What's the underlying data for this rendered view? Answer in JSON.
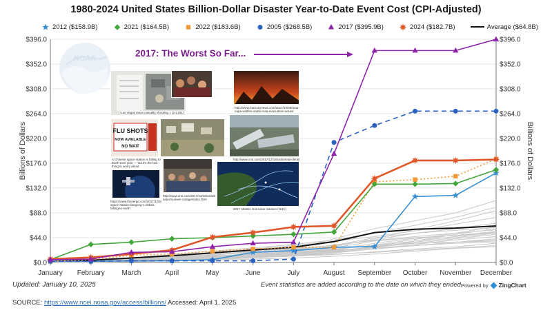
{
  "chart_data": {
    "type": "line",
    "title": "1980-2024 United States Billion-Dollar Disaster Year-to-Date Event Cost (CPI-Adjusted)",
    "ylabel_left": "Billions of Dollars",
    "ylabel_right": "Billions of Dollars",
    "categories": [
      "January",
      "February",
      "March",
      "April",
      "May",
      "June",
      "July",
      "August",
      "September",
      "October",
      "November",
      "December"
    ],
    "ylim": [
      0,
      396
    ],
    "yticks": [
      "$0.0",
      "$44.0",
      "$88.0",
      "$132.0",
      "$176.0",
      "$220.0",
      "$264.0",
      "$308.0",
      "$352.0",
      "$396.0"
    ],
    "series": [
      {
        "name": "2012 ($158.9B)",
        "color": "#3a8fd0",
        "marker": "star",
        "dash": "solid",
        "values": [
          2,
          2,
          3,
          3,
          5,
          18,
          21,
          27,
          28,
          117,
          119,
          158.9
        ]
      },
      {
        "name": "2021 ($164.5B)",
        "color": "#43a63a",
        "marker": "diamond",
        "dash": "solid",
        "values": [
          5,
          32,
          36,
          42,
          44,
          47,
          50,
          54,
          139,
          139,
          140,
          164.5
        ]
      },
      {
        "name": "2022 ($183.6B)",
        "color": "#f29a38",
        "marker": "square",
        "dash": "dotted",
        "values": [
          2,
          5,
          13,
          15,
          20,
          24,
          27,
          27,
          143,
          147,
          153,
          183.6
        ]
      },
      {
        "name": "2005 ($268.5B)",
        "color": "#2b62c0",
        "marker": "circle",
        "dash": "dashed",
        "values": [
          2,
          2,
          3,
          3,
          3,
          3,
          6,
          213,
          243,
          268.5,
          268.5,
          268.5
        ]
      },
      {
        "name": "2017 ($395.9B)",
        "color": "#8e24aa",
        "marker": "triangle",
        "dash": "solid",
        "values": [
          5,
          6,
          18,
          19,
          28,
          34,
          36,
          193,
          376,
          376,
          376,
          395.9
        ]
      },
      {
        "name": "2024 ($182.7B)",
        "color": "#e0582a",
        "marker": "burst",
        "dash": "solid",
        "values": [
          6,
          9,
          15,
          22,
          45,
          53,
          63,
          65,
          149,
          181,
          181,
          182.7
        ]
      },
      {
        "name": "Average ($64.8B)",
        "color": "#111111",
        "marker": "none",
        "dash": "solid",
        "values": [
          2,
          4,
          8,
          12,
          17,
          22,
          27,
          37,
          53,
          59,
          61,
          64.8
        ]
      }
    ],
    "background_series_color": "#c9c9c9",
    "background_series": [
      [
        1,
        3,
        5,
        8,
        12,
        14,
        16,
        22,
        34,
        43,
        48,
        55
      ],
      [
        0,
        1,
        2,
        4,
        6,
        9,
        14,
        19,
        24,
        30,
        36,
        40
      ],
      [
        1,
        2,
        6,
        10,
        14,
        18,
        20,
        26,
        30,
        34,
        36,
        38
      ],
      [
        0,
        1,
        3,
        5,
        9,
        13,
        16,
        20,
        26,
        38,
        50,
        60
      ],
      [
        2,
        4,
        7,
        11,
        14,
        20,
        25,
        30,
        44,
        52,
        57,
        62
      ],
      [
        0,
        2,
        4,
        6,
        8,
        10,
        12,
        15,
        18,
        22,
        26,
        30
      ],
      [
        1,
        2,
        3,
        6,
        10,
        15,
        22,
        30,
        40,
        52,
        60,
        70
      ],
      [
        0,
        0,
        1,
        3,
        6,
        9,
        14,
        26,
        38,
        44,
        48,
        52
      ],
      [
        1,
        3,
        7,
        12,
        18,
        24,
        30,
        38,
        46,
        56,
        68,
        80
      ],
      [
        0,
        1,
        2,
        4,
        8,
        14,
        20,
        28,
        42,
        58,
        74,
        92
      ],
      [
        1,
        2,
        4,
        7,
        11,
        16,
        23,
        31,
        39,
        46,
        52,
        58
      ],
      [
        0,
        2,
        3,
        5,
        7,
        9,
        11,
        14,
        19,
        24,
        28,
        34
      ],
      [
        2,
        4,
        8,
        14,
        20,
        26,
        32,
        40,
        52,
        66,
        80,
        98
      ],
      [
        0,
        1,
        2,
        3,
        5,
        8,
        12,
        17,
        24,
        32,
        40,
        46
      ],
      [
        1,
        3,
        6,
        9,
        13,
        18,
        24,
        42,
        60,
        74,
        88,
        110
      ],
      [
        0,
        1,
        3,
        5,
        8,
        12,
        17,
        23,
        31,
        41,
        52,
        64
      ],
      [
        1,
        2,
        3,
        5,
        7,
        10,
        13,
        18,
        24,
        30,
        36,
        42
      ],
      [
        0,
        1,
        2,
        4,
        7,
        11,
        15,
        20,
        28,
        36,
        44,
        52
      ],
      [
        1,
        2,
        4,
        6,
        9,
        12,
        16,
        21,
        27,
        34,
        42,
        50
      ],
      [
        0,
        1,
        2,
        3,
        4,
        6,
        8,
        11,
        15,
        20,
        25,
        28
      ],
      [
        2,
        3,
        5,
        8,
        11,
        15,
        19,
        24,
        30,
        38,
        46,
        54
      ],
      [
        0,
        2,
        4,
        7,
        10,
        14,
        18,
        22,
        26,
        30,
        34,
        36
      ]
    ],
    "annotation": "2017: The Worst So Far...",
    "collage_captions": [
      "Las Vegas mass casualty shooting 1 Oct 2017",
      "http://www.mercurynews.com/2017/10/09/map-napa-wildfire-santa-rosa-evacuation-areas/",
      "A Chinese space station is falling to Earth next year — but it's the last thing to worry about",
      "http://www.cnn.com/2017/12/18/us/amtrak-derailment/",
      "https://www.theverge.com/2017/12/5/16800494/chinese-space-station-tiangong-1-debris-falling-to-earth",
      "http://www.cnn.com/2017/12/18/us/atlanta-airport-power-outage/index.html",
      "2017 Atlantic Hurricane Season (NHC)"
    ],
    "collage_signs": [
      "FLU SHOTS",
      "NOW AVAILABLE",
      "NO WAIT"
    ]
  },
  "logo": {
    "text": "NOAA"
  },
  "footer": {
    "updated": "Updated: January 10, 2025",
    "event_note": "Event statistics are added according to the date on which they ended.",
    "powered_prefix": "Powered by",
    "powered_brand": "ZingChart",
    "source_label": "SOURCE:",
    "source_url": "https://www.ncei.noaa.gov/access/billions/",
    "accessed": "Accessed: April 1, 2025"
  }
}
